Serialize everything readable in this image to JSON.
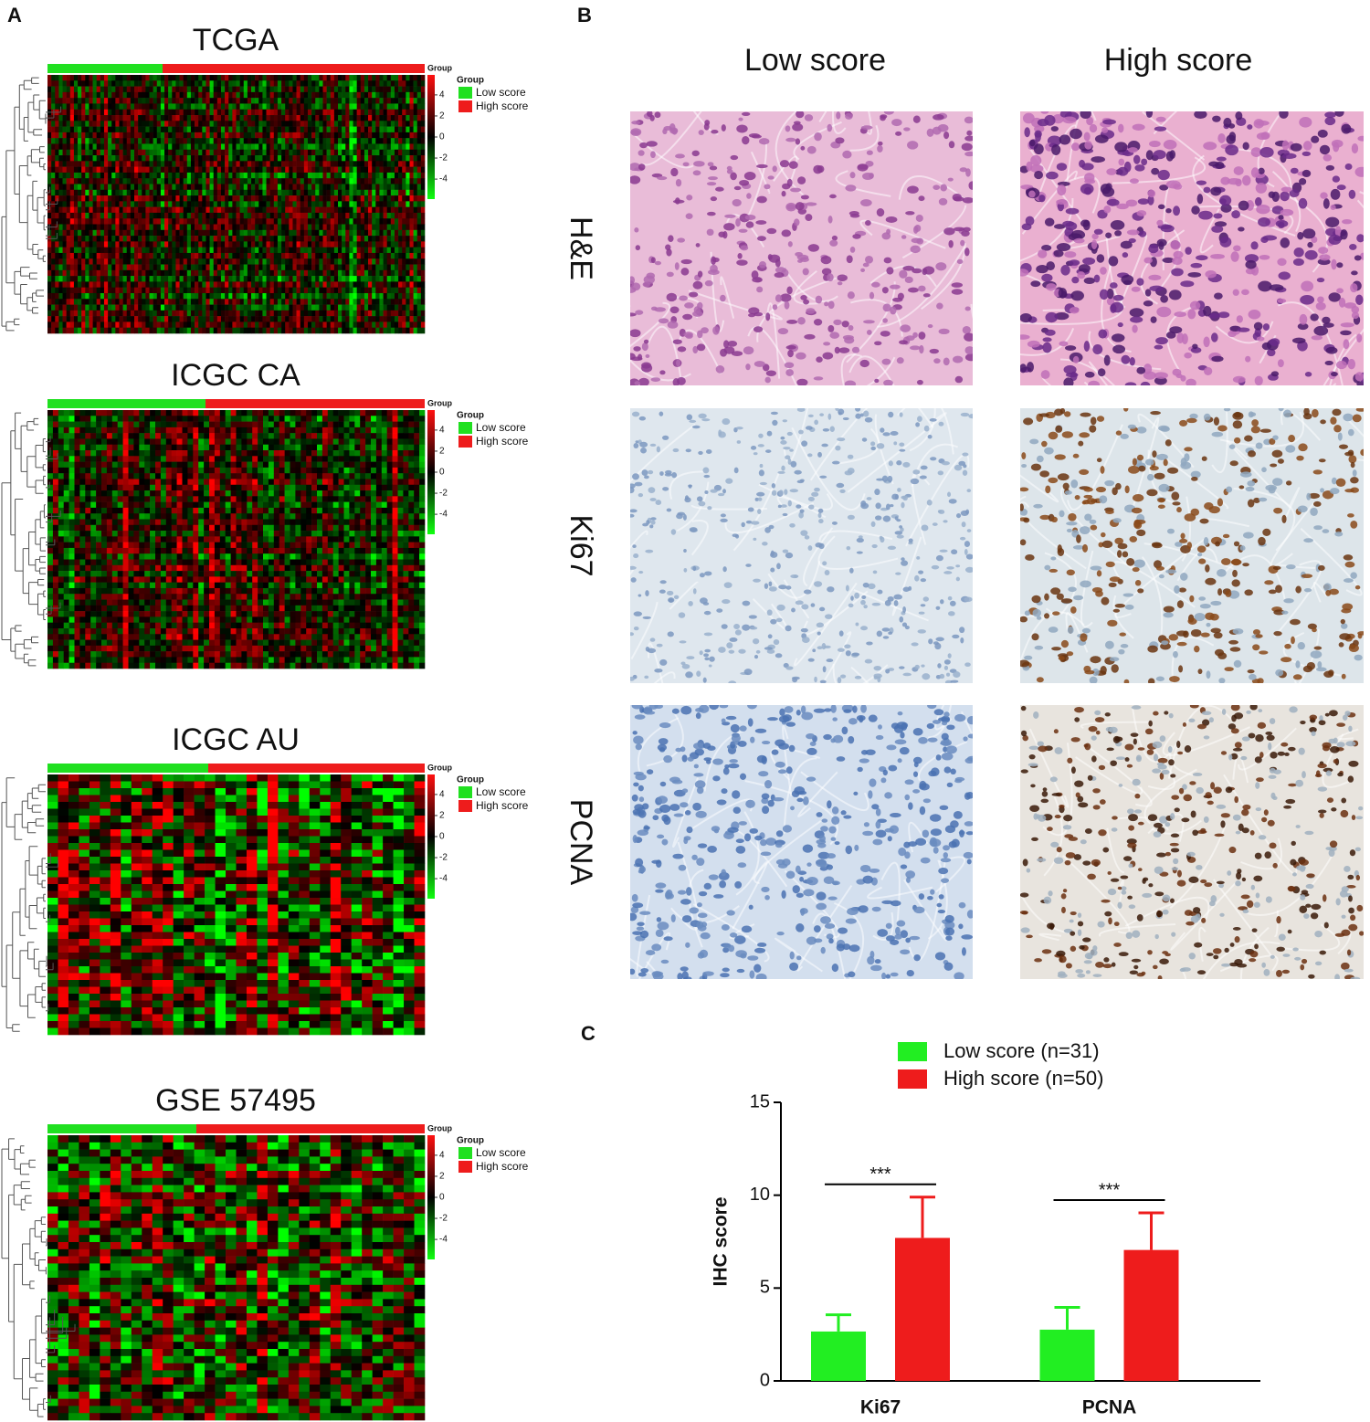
{
  "panel_labels": [
    "A",
    "B",
    "C"
  ],
  "heatmaps": {
    "group_label": "Group",
    "legend_title": "Group",
    "legend": [
      "Low score",
      "High score"
    ],
    "legend_colors": [
      "#20e020",
      "#ee1c1c"
    ],
    "colorbar_ticks": [
      4,
      2,
      0,
      -2,
      -4
    ],
    "colorbar_lim": [
      -5.9,
      5.9
    ],
    "panels": [
      {
        "title": "TCGA"
      },
      {
        "title": "ICGC CA"
      },
      {
        "title": "ICGC AU"
      },
      {
        "title": "GSE 57495"
      }
    ]
  },
  "ihc": {
    "columns": [
      "Low score",
      "High score"
    ],
    "rows": [
      "H&E",
      "Ki67",
      "PCNA"
    ]
  },
  "chart_data": {
    "type": "bar",
    "ylabel": "IHC score",
    "categories": [
      "Ki67",
      "PCNA"
    ],
    "series": [
      {
        "name": "Low score (n=31)",
        "color": "#22ee22",
        "values": [
          2.66,
          2.76
        ],
        "errors": [
          0.9,
          1.2
        ]
      },
      {
        "name": "High score (n=50)",
        "color": "#ee1c1c",
        "values": [
          7.7,
          7.05
        ],
        "errors": [
          2.2,
          2.0
        ]
      }
    ],
    "annotations": [
      "***",
      "***"
    ],
    "ylim": [
      0,
      15
    ],
    "yticks": [
      0,
      5,
      10,
      15
    ]
  }
}
